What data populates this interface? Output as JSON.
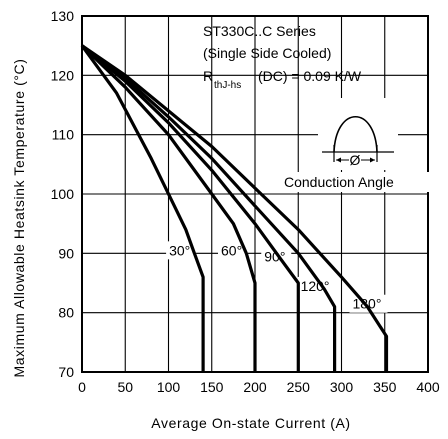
{
  "chart_data": {
    "type": "line",
    "xlabel": "Average On-state Current (A)",
    "ylabel": "Maximum Allowable Heatsink Temperature (°C)",
    "xlim": [
      0,
      400
    ],
    "ylim": [
      70,
      130
    ],
    "x_ticks": [
      "0",
      "50",
      "100",
      "150",
      "200",
      "250",
      "300",
      "350",
      "400"
    ],
    "y_ticks": [
      "70",
      "80",
      "90",
      "100",
      "110",
      "120",
      "130"
    ],
    "grid": true,
    "annotations": {
      "series_title": "ST330C..C Series",
      "cooling": "(Single Side Cooled)",
      "rth_symbol": "R",
      "rth_subscript": "thJ-hs",
      "rth_value": "(DC) = 0.09 K/W",
      "inset_label": "Conduction Angle",
      "inset_symbol": "Ø"
    },
    "series": [
      {
        "label": "30°",
        "x": [
          0,
          40,
          80,
          110,
          120,
          130,
          140,
          140
        ],
        "y": [
          125,
          117,
          106,
          97,
          94,
          90,
          86,
          70
        ]
      },
      {
        "label": "60°",
        "x": [
          0,
          50,
          100,
          150,
          175,
          190,
          200,
          200
        ],
        "y": [
          125,
          118,
          110,
          100,
          95,
          90,
          85,
          70
        ]
      },
      {
        "label": "90°",
        "x": [
          0,
          50,
          100,
          150,
          200,
          230,
          250,
          250
        ],
        "y": [
          125,
          119,
          112,
          104,
          95,
          89,
          85,
          70
        ]
      },
      {
        "label": "120°",
        "x": [
          0,
          50,
          100,
          150,
          200,
          250,
          280,
          292,
          292
        ],
        "y": [
          125,
          119.5,
          113,
          106,
          98,
          90,
          84,
          81,
          70
        ]
      },
      {
        "label": "180°",
        "x": [
          0,
          50,
          100,
          150,
          200,
          250,
          300,
          330,
          352,
          352
        ],
        "y": [
          125,
          120,
          114,
          108,
          101,
          94,
          86,
          81,
          76,
          70
        ]
      }
    ]
  }
}
